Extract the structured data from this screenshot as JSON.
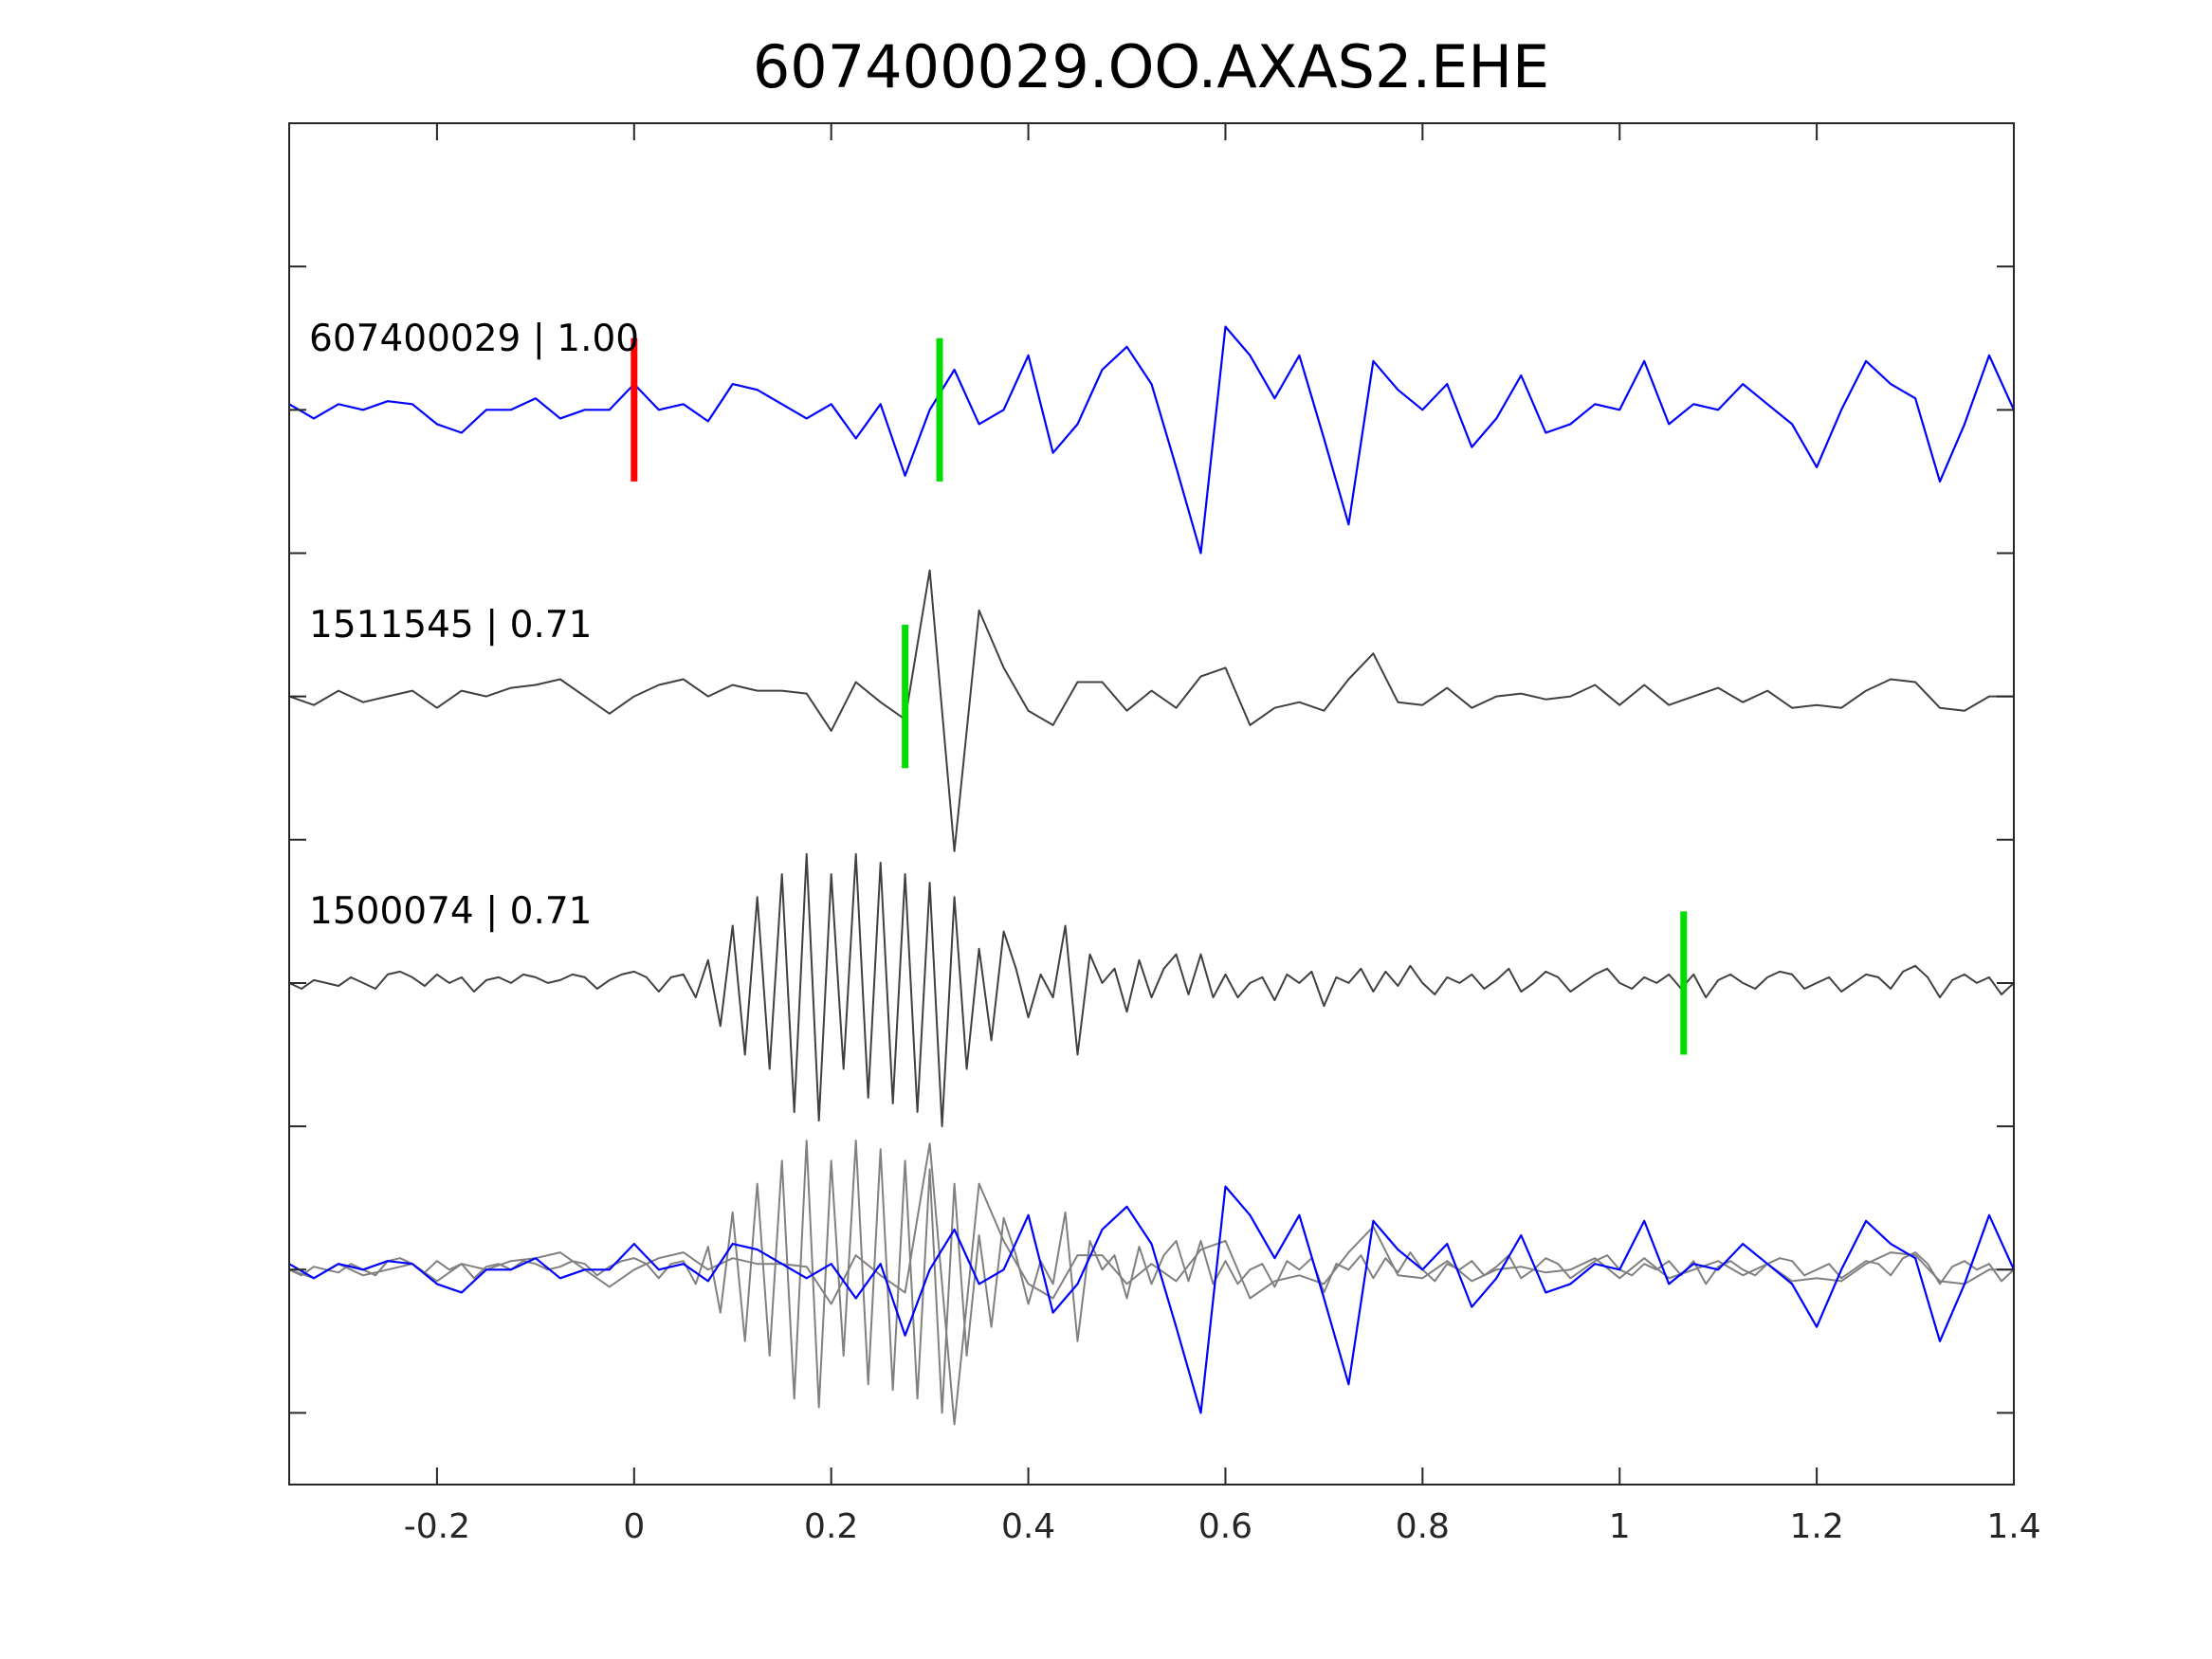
{
  "chart_data": {
    "type": "line",
    "title": "607400029.OO.AXAS2.EHE",
    "xlabel": "",
    "ylabel": "",
    "xlim": [
      -0.35,
      1.4
    ],
    "ylim": [
      -3.75,
      1.0
    ],
    "xticks": [
      -0.2,
      0,
      0.2,
      0.4,
      0.6,
      0.8,
      1,
      1.2,
      1.4
    ],
    "xtick_labels": [
      "-0.2",
      "0",
      "0.2",
      "0.4",
      "0.6",
      "0.8",
      "1",
      "1.2",
      "1.4"
    ],
    "yticks": [
      0.5,
      0,
      -0.5,
      -1,
      -1.5,
      -2,
      -2.5,
      -3,
      -3.5
    ],
    "grid": false,
    "colors": {
      "template": "#0000ff",
      "match": "#404040",
      "overlay_match": "#808080",
      "pick_reference": "#ff0000",
      "pick_detected": "#00dd00",
      "axis": "#262626"
    },
    "series": [
      {
        "name": "607400029",
        "label": "607400029 | 1.00",
        "offset": 0,
        "t0": -0.35,
        "dt": 0.025,
        "values": [
          0.02,
          -0.03,
          0.02,
          0,
          0.03,
          0.02,
          -0.05,
          -0.08,
          0,
          0,
          0.04,
          -0.03,
          0,
          0,
          0.09,
          0,
          0.02,
          -0.04,
          0.09,
          0.07,
          0.02,
          -0.03,
          0.02,
          -0.1,
          0.02,
          -0.23,
          0,
          0.14,
          -0.05,
          0,
          0.19,
          -0.15,
          -0.05,
          0.14,
          0.22,
          0.09,
          -0.2,
          -0.5,
          0.29,
          0.19,
          0.04,
          0.19,
          -0.1,
          -0.4,
          0.17,
          0.07,
          0,
          0.09,
          -0.13,
          -0.03,
          0.12,
          -0.08,
          -0.05,
          0.02,
          0,
          0.17,
          -0.05,
          0.02,
          0,
          0.09,
          0.02,
          -0.05,
          -0.2,
          0,
          0.17,
          0.09,
          0.04,
          -0.25,
          -0.05,
          0.19,
          0
        ],
        "picks": [
          {
            "t": 0.0,
            "kind": "reference"
          },
          {
            "t": 0.31,
            "kind": "detected"
          }
        ]
      },
      {
        "name": "1511545",
        "label": "1511545 | 0.71",
        "offset": -1,
        "t0": -0.35,
        "dt": 0.025,
        "values": [
          0,
          -0.03,
          0.02,
          -0.02,
          0,
          0.02,
          -0.04,
          0.02,
          0,
          0.03,
          0.04,
          0.06,
          0,
          -0.06,
          0,
          0.04,
          0.06,
          0,
          0.04,
          0.02,
          0.02,
          0.01,
          -0.12,
          0.05,
          -0.02,
          -0.08,
          0.44,
          -0.54,
          0.3,
          0.1,
          -0.05,
          -0.1,
          0.05,
          0.05,
          -0.05,
          0.02,
          -0.04,
          0.07,
          0.1,
          -0.1,
          -0.04,
          -0.02,
          -0.05,
          0.06,
          0.15,
          -0.02,
          -0.03,
          0.03,
          -0.04,
          0,
          0.01,
          -0.01,
          0,
          0.04,
          -0.03,
          0.04,
          -0.03,
          0,
          0.03,
          -0.02,
          0.02,
          -0.04,
          -0.03,
          -0.04,
          0.02,
          0.06,
          0.05,
          -0.04,
          -0.05,
          0,
          0
        ],
        "picks": [
          {
            "t": 0.275,
            "kind": "detected"
          }
        ]
      },
      {
        "name": "1500074",
        "label": "1500074 | 0.71",
        "offset": -2,
        "t0": -0.35,
        "dt": 0.0125,
        "values": [
          0,
          -0.02,
          0.01,
          0,
          -0.01,
          0.02,
          0,
          -0.02,
          0.03,
          0.04,
          0.02,
          -0.01,
          0.03,
          0,
          0.02,
          -0.03,
          0.01,
          0.02,
          0,
          0.03,
          0.02,
          0,
          0.01,
          0.03,
          0.02,
          -0.02,
          0.01,
          0.03,
          0.04,
          0.02,
          -0.03,
          0.02,
          0.03,
          -0.05,
          0.08,
          -0.15,
          0.2,
          -0.25,
          0.3,
          -0.3,
          0.38,
          -0.45,
          0.45,
          -0.48,
          0.38,
          -0.3,
          0.45,
          -0.4,
          0.42,
          -0.42,
          0.38,
          -0.45,
          0.35,
          -0.5,
          0.3,
          -0.3,
          0.12,
          -0.2,
          0.18,
          0.05,
          -0.12,
          0.03,
          -0.05,
          0.2,
          -0.25,
          0.1,
          0,
          0.05,
          -0.1,
          0.08,
          -0.05,
          0.05,
          0.1,
          -0.04,
          0.1,
          -0.05,
          0.03,
          -0.05,
          0,
          0.02,
          -0.06,
          0.03,
          0,
          0.04,
          -0.08,
          0.02,
          0,
          0.05,
          -0.03,
          0.04,
          -0.01,
          0.06,
          0,
          -0.04,
          0.02,
          0,
          0.03,
          -0.02,
          0.01,
          0.05,
          -0.03,
          0,
          0.04,
          0.02,
          -0.03,
          0,
          0.03,
          0.05,
          0,
          -0.02,
          0.02,
          0,
          0.03,
          -0.02,
          0.03,
          -0.05,
          0.01,
          0.03,
          0,
          -0.02,
          0.02,
          0.04,
          0.03,
          -0.02,
          0,
          0.02,
          -0.03,
          0,
          0.03,
          0.02,
          -0.02,
          0.04,
          0.06,
          0.02,
          -0.05,
          0.01,
          0.03,
          0,
          0.02,
          -0.04,
          0
        ],
        "picks": [
          {
            "t": 1.065,
            "kind": "detected"
          }
        ]
      }
    ],
    "overlay": {
      "offset": -3,
      "description_series": [
        "607400029",
        "1511545",
        "1500074"
      ]
    }
  }
}
